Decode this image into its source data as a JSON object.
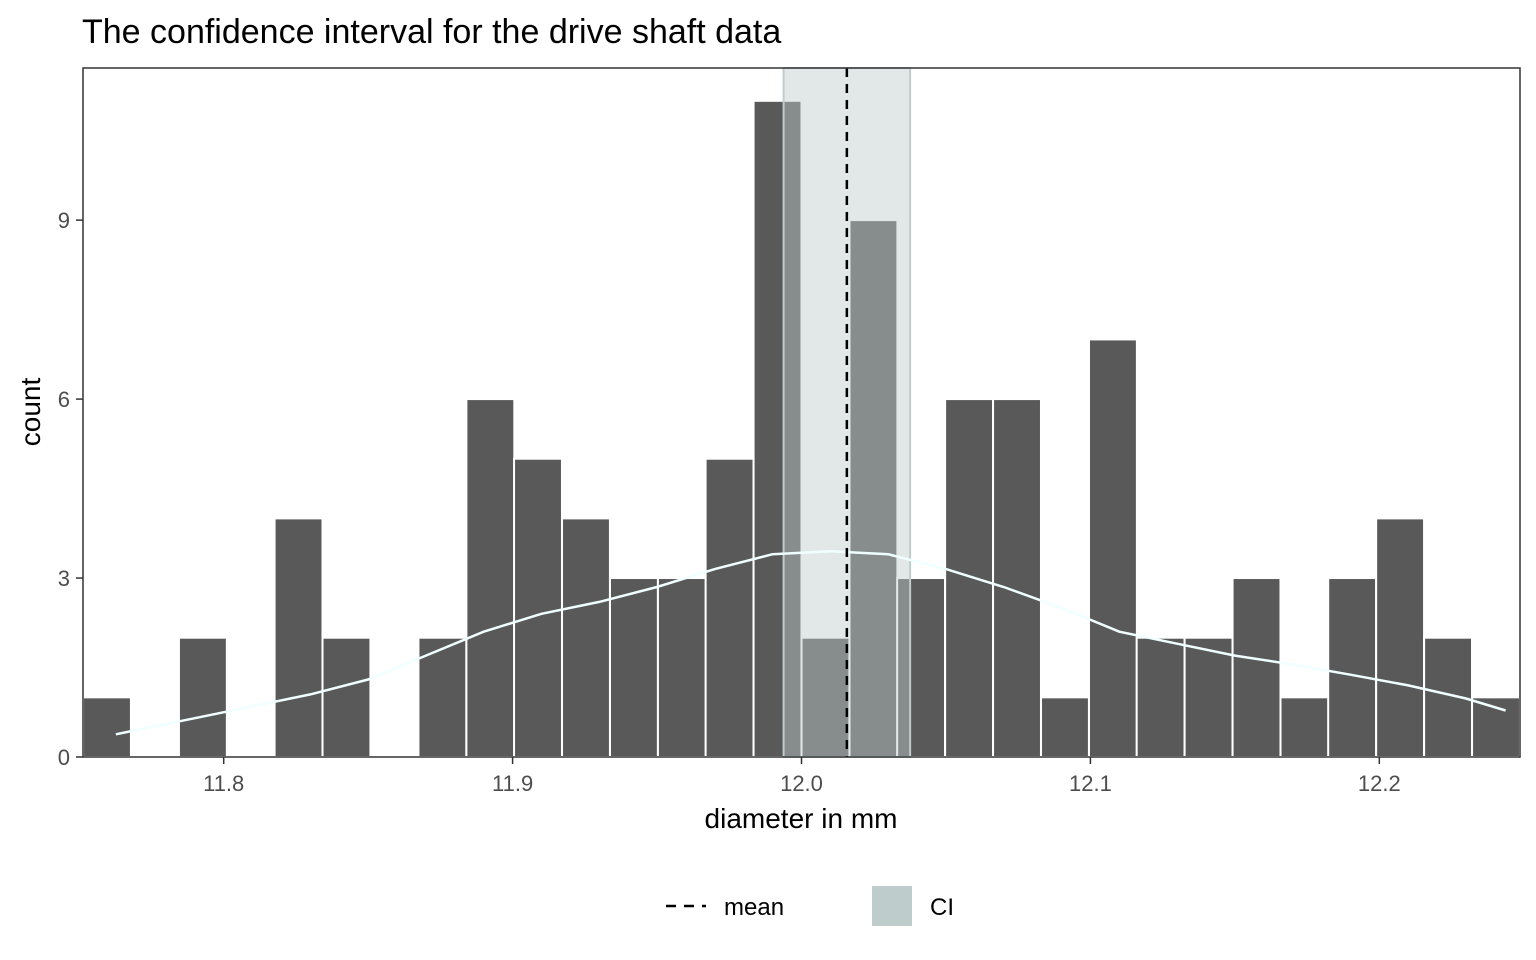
{
  "chart_data": {
    "type": "bar",
    "title": "The confidence interval for the drive shaft data",
    "xlabel": "diameter in mm",
    "ylabel": "count",
    "xlim": [
      11.7513,
      12.2487
    ],
    "ylim": [
      0,
      11.55
    ],
    "x_ticks": [
      11.8,
      11.9,
      12.0,
      12.1,
      12.2
    ],
    "x_tick_labels": [
      "11.8",
      "11.9",
      "12.0",
      "12.1",
      "12.2"
    ],
    "y_ticks": [
      0,
      3,
      6,
      9
    ],
    "y_tick_labels": [
      "0",
      "3",
      "6",
      "9"
    ],
    "grid": false,
    "legend_position": "bottom",
    "bin_width": 0.01658,
    "bin_centers": [
      11.7596,
      11.7762,
      11.7928,
      11.8094,
      11.8259,
      11.8425,
      11.8591,
      11.8757,
      11.8923,
      11.9088,
      11.9254,
      11.942,
      11.9586,
      11.9751,
      11.9917,
      12.0083,
      12.0249,
      12.0414,
      12.058,
      12.0746,
      12.0912,
      12.1078,
      12.1243,
      12.1409,
      12.1575,
      12.1741,
      12.1906,
      12.2072,
      12.2238,
      12.2404
    ],
    "counts": [
      1,
      0,
      2,
      0,
      4,
      2,
      0,
      2,
      6,
      5,
      4,
      3,
      3,
      5,
      11,
      2,
      9,
      3,
      6,
      6,
      1,
      7,
      2,
      2,
      3,
      1,
      3,
      4,
      2,
      1
    ],
    "mean": 12.0157,
    "ci": [
      11.9938,
      12.0376
    ],
    "density_curve": {
      "x": [
        11.7627,
        11.79,
        11.81,
        11.83,
        11.85,
        11.87,
        11.89,
        11.91,
        11.93,
        11.95,
        11.97,
        11.99,
        12.01,
        12.03,
        12.05,
        12.07,
        12.09,
        12.11,
        12.13,
        12.15,
        12.17,
        12.19,
        12.21,
        12.23,
        12.2437
      ],
      "y": [
        0.38,
        0.65,
        0.85,
        1.05,
        1.3,
        1.7,
        2.1,
        2.4,
        2.6,
        2.85,
        3.15,
        3.4,
        3.45,
        3.4,
        3.15,
        2.85,
        2.5,
        2.1,
        1.9,
        1.7,
        1.55,
        1.38,
        1.2,
        0.98,
        0.78
      ]
    },
    "legend": [
      {
        "label": "mean",
        "kind": "dashed-line"
      },
      {
        "label": "CI",
        "kind": "filled-box"
      }
    ],
    "colors": {
      "bar": "#595959",
      "bar_in_ci": "#8d9292",
      "bar_border": "#ffffff",
      "ci_fill": "#bfcccc",
      "ci_border": "#bfcccc",
      "mean_line": "#000000",
      "density": "#f0ffff",
      "panel_border": "#333333",
      "axis_text": "#4d4d4d"
    }
  }
}
